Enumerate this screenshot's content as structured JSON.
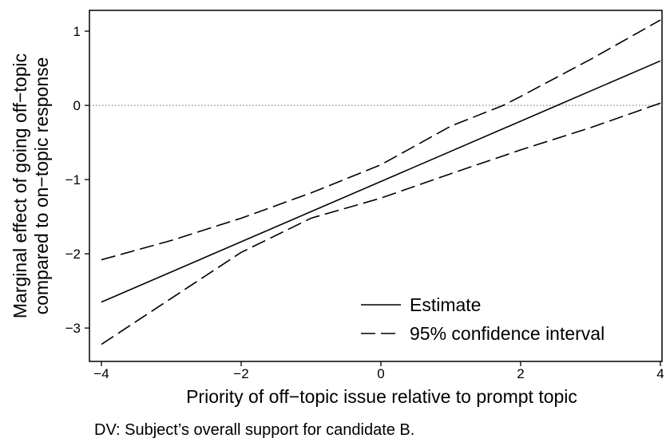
{
  "chart_data": {
    "type": "line",
    "x": [
      -4,
      4
    ],
    "series": [
      {
        "name": "Estimate",
        "style": "solid",
        "values": [
          -2.65,
          0.6
        ]
      },
      {
        "name": "95% confidence interval",
        "style": "dashed",
        "part": "upper",
        "points": [
          [
            -4,
            -2.08
          ],
          [
            -3,
            -1.82
          ],
          [
            -2,
            -1.52
          ],
          [
            -1,
            -1.18
          ],
          [
            0,
            -0.8
          ],
          [
            1,
            -0.28
          ],
          [
            1.75,
            0.0
          ],
          [
            2,
            0.12
          ],
          [
            3,
            0.62
          ],
          [
            4,
            1.15
          ]
        ]
      },
      {
        "name": "95% confidence interval",
        "style": "dashed",
        "part": "lower",
        "points": [
          [
            -4,
            -3.22
          ],
          [
            -3,
            -2.6
          ],
          [
            -2,
            -1.98
          ],
          [
            -1,
            -1.52
          ],
          [
            0,
            -1.25
          ],
          [
            1,
            -0.92
          ],
          [
            2,
            -0.6
          ],
          [
            3,
            -0.3
          ],
          [
            4,
            0.03
          ]
        ]
      }
    ],
    "reference_line": {
      "y": 0,
      "style": "dotted"
    },
    "xlabel": "Priority of off−topic issue relative to prompt topic",
    "ylabel_lines": [
      "Marginal effect of going off−topic",
      "compared to on−topic response"
    ],
    "xlim": [
      -4,
      4
    ],
    "ylim": [
      -3.45,
      1.28
    ],
    "xticks": [
      -4,
      -2,
      0,
      2,
      4
    ],
    "xtick_labels": [
      "−4",
      "−2",
      "0",
      "2",
      "4"
    ],
    "yticks": [
      -3,
      -2,
      -1,
      0,
      1
    ],
    "ytick_labels": [
      "−3",
      "−2",
      "−1",
      "0",
      "1"
    ],
    "grid": false,
    "legend_position": "bottom-right",
    "legend": [
      "Estimate",
      "95% confidence interval"
    ],
    "note": "DV: Subject’s overall support for candidate B."
  }
}
